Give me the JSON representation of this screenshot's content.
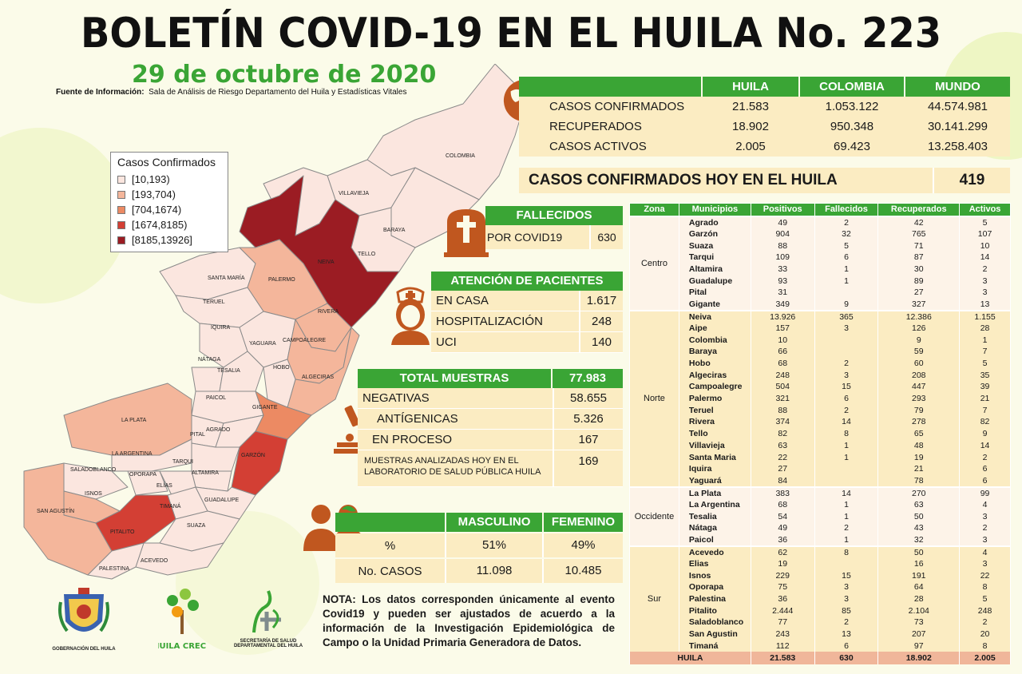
{
  "header": {
    "title": "BOLETÍN COVID-19 EN EL HUILA No. 223",
    "date": "29 de octubre de 2020",
    "source_label": "Fuente de Información:",
    "source_text": "Sala de Análisis de Riesgo Departamento del Huila y Estadísticas Vitales"
  },
  "legend": {
    "title": "Casos Confirmados",
    "items": [
      {
        "label": "[10,193)",
        "color": "#fbe6df"
      },
      {
        "label": "[193,704)",
        "color": "#f4b69b"
      },
      {
        "label": "[704,1674)",
        "color": "#ec8a63"
      },
      {
        "label": "[1674,8185)",
        "color": "#d33f34"
      },
      {
        "label": "[8185,13926]",
        "color": "#9b1c23"
      }
    ]
  },
  "map_labels": {
    "colombia": "COLOMBIA",
    "villavieja": "VILLAVIEJA",
    "baraya": "BARAYA",
    "tello": "TELLO",
    "neiva": "NEIVA",
    "santa_maria": "SANTA MARÍA",
    "palermo": "PALERMO",
    "teruel": "TERUEL",
    "rivera": "RIVERA",
    "iquira": "IQUIRA",
    "campoalegre": "CAMPOALEGRE",
    "yaguara": "YAGUARA",
    "nataga": "NÁTAGA",
    "tesalia": "TESALIA",
    "hobo": "HOBO",
    "algeciras": "ALGECIRAS",
    "paicol": "PAICOL",
    "gigante": "GIGANTE",
    "la_plata": "LA PLATA",
    "pital": "PITAL",
    "agrado": "AGRADO",
    "la_argentina": "LA ARGENTINA",
    "garzon": "GARZÓN",
    "tarqui": "TARQUI",
    "saladoblanco": "SALADOBLANCO",
    "oporapa": "OPORAPA",
    "altamira": "ALTAMIRA",
    "isnos": "ISNOS",
    "elias": "ELÍAS",
    "guadalupe": "GUADALUPE",
    "timana": "TIMANÁ",
    "san_agustin": "SAN AGUSTÍN",
    "suaza": "SUAZA",
    "pitalito": "PITALITO",
    "acevedo": "ACEVEDO",
    "palestina": "PALESTINA"
  },
  "summary": {
    "headers": [
      "HUILA",
      "COLOMBIA",
      "MUNDO"
    ],
    "rows": [
      {
        "label": "CASOS CONFIRMADOS",
        "values": [
          "21.583",
          "1.053.122",
          "44.574.981"
        ]
      },
      {
        "label": "RECUPERADOS",
        "values": [
          "18.902",
          "950.348",
          "30.141.299"
        ]
      },
      {
        "label": "CASOS ACTIVOS",
        "values": [
          "2.005",
          "69.423",
          "13.258.403"
        ]
      }
    ]
  },
  "today": {
    "label": "CASOS CONFIRMADOS  HOY EN EL HUILA",
    "value": "419"
  },
  "deaths": {
    "title": "FALLECIDOS",
    "label": "POR COVID19",
    "value": "630"
  },
  "care": {
    "title": "ATENCIÓN DE PACIENTES",
    "rows": [
      {
        "label": "EN CASA",
        "value": "1.617"
      },
      {
        "label": "HOSPITALIZACIÓN",
        "value": "248"
      },
      {
        "label": "UCI",
        "value": "140"
      }
    ]
  },
  "samples": {
    "title": "TOTAL MUESTRAS",
    "total": "77.983",
    "rows": [
      {
        "label": "NEGATIVAS",
        "value": "58.655"
      },
      {
        "label": "ANTÍGENICAS",
        "value": "5.326"
      },
      {
        "label": "EN PROCESO",
        "value": "167"
      }
    ],
    "lab_label": "MUESTRAS ANALIZADAS HOY EN EL LABORATORIO DE SALUD PÚBLICA HUILA",
    "lab_value": "169"
  },
  "gender": {
    "headers": [
      "MASCULINO",
      "FEMENINO"
    ],
    "rows": [
      {
        "label": "%",
        "values": [
          "51%",
          "49%"
        ]
      },
      {
        "label": "No. CASOS",
        "values": [
          "11.098",
          "10.485"
        ]
      }
    ]
  },
  "note": "NOTA: Los datos corresponden únicamente al evento Covid19 y pueden ser ajustados de acuerdo a la información de la Investigación Epidemiológica de Campo o la Unidad Primaria Generadora de Datos.",
  "logos": {
    "gobernacion": "GOBERNACIÓN DEL HUILA",
    "huila_crece": "HUILA CRECE",
    "secretaria": "SECRETARÍA DE SALUD DEPARTAMENTAL DEL HUILA"
  },
  "municipios": {
    "headers": [
      "Zona",
      "Municipios",
      "Positivos",
      "Fallecidos",
      "Recuperados",
      "Activos"
    ],
    "zones": [
      {
        "name": "Centro",
        "rows": [
          [
            "Agrado",
            "49",
            "2",
            "42",
            "5"
          ],
          [
            "Garzón",
            "904",
            "32",
            "765",
            "107"
          ],
          [
            "Suaza",
            "88",
            "5",
            "71",
            "10"
          ],
          [
            "Tarqui",
            "109",
            "6",
            "87",
            "14"
          ],
          [
            "Altamira",
            "33",
            "1",
            "30",
            "2"
          ],
          [
            "Guadalupe",
            "93",
            "1",
            "89",
            "3"
          ],
          [
            "Pital",
            "31",
            "",
            "27",
            "3"
          ],
          [
            "Gigante",
            "349",
            "9",
            "327",
            "13"
          ]
        ]
      },
      {
        "name": "Norte",
        "rows": [
          [
            "Neiva",
            "13.926",
            "365",
            "12.386",
            "1.155"
          ],
          [
            "Aipe",
            "157",
            "3",
            "126",
            "28"
          ],
          [
            "Colombia",
            "10",
            "",
            "9",
            "1"
          ],
          [
            "Baraya",
            "66",
            "",
            "59",
            "7"
          ],
          [
            "Hobo",
            "68",
            "2",
            "60",
            "5"
          ],
          [
            "Algeciras",
            "248",
            "3",
            "208",
            "35"
          ],
          [
            "Campoalegre",
            "504",
            "15",
            "447",
            "39"
          ],
          [
            "Palermo",
            "321",
            "6",
            "293",
            "21"
          ],
          [
            "Teruel",
            "88",
            "2",
            "79",
            "7"
          ],
          [
            "Rivera",
            "374",
            "14",
            "278",
            "82"
          ],
          [
            "Tello",
            "82",
            "8",
            "65",
            "9"
          ],
          [
            "Villavieja",
            "63",
            "1",
            "48",
            "14"
          ],
          [
            "Santa Maria",
            "22",
            "1",
            "19",
            "2"
          ],
          [
            "Iquira",
            "27",
            "",
            "21",
            "6"
          ],
          [
            "Yaguará",
            "84",
            "",
            "78",
            "6"
          ]
        ]
      },
      {
        "name": "Occidente",
        "rows": [
          [
            "La Plata",
            "383",
            "14",
            "270",
            "99"
          ],
          [
            "La Argentina",
            "68",
            "1",
            "63",
            "4"
          ],
          [
            "Tesalia",
            "54",
            "1",
            "50",
            "3"
          ],
          [
            "Nátaga",
            "49",
            "2",
            "43",
            "2"
          ],
          [
            "Paicol",
            "36",
            "1",
            "32",
            "3"
          ]
        ]
      },
      {
        "name": "Sur",
        "rows": [
          [
            "Acevedo",
            "62",
            "8",
            "50",
            "4"
          ],
          [
            "Elias",
            "19",
            "",
            "16",
            "3"
          ],
          [
            "Isnos",
            "229",
            "15",
            "191",
            "22"
          ],
          [
            "Oporapa",
            "75",
            "3",
            "64",
            "8"
          ],
          [
            "Palestina",
            "36",
            "3",
            "28",
            "5"
          ],
          [
            "Pitalito",
            "2.444",
            "85",
            "2.104",
            "248"
          ],
          [
            "Saladoblanco",
            "77",
            "2",
            "73",
            "2"
          ],
          [
            "San Agustin",
            "243",
            "13",
            "207",
            "20"
          ],
          [
            "Timaná",
            "112",
            "6",
            "97",
            "8"
          ]
        ]
      }
    ],
    "total": [
      "HUILA",
      "21.583",
      "630",
      "18.902",
      "2.005"
    ]
  },
  "colors": {
    "green": "#3aa535",
    "cream": "#fbecc2",
    "rust": "#c0571f"
  }
}
